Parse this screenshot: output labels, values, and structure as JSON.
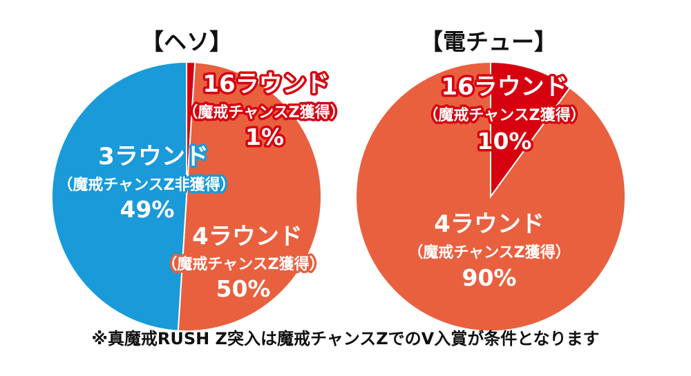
{
  "chart_data": [
    {
      "type": "pie",
      "title": "【ヘソ】",
      "slices": [
        {
          "label": "16ラウンド",
          "sublabel": "（魔戒チャンスZ獲得）",
          "value": 1,
          "pct_text": "1%",
          "color": "#d7000f"
        },
        {
          "label": "4ラウンド",
          "sublabel": "（魔戒チャンスZ獲得）",
          "value": 50,
          "pct_text": "50%",
          "color": "#e9603f"
        },
        {
          "label": "3ラウンド",
          "sublabel": "（魔戒チャンスZ非獲得）",
          "value": 49,
          "pct_text": "49%",
          "color": "#1a9ad8"
        }
      ]
    },
    {
      "type": "pie",
      "title": "【電チュー】",
      "slices": [
        {
          "label": "16ラウンド",
          "sublabel": "（魔戒チャンスZ獲得）",
          "value": 10,
          "pct_text": "10%",
          "color": "#d7000f"
        },
        {
          "label": "4ラウンド",
          "sublabel": "（魔戒チャンスZ獲得）",
          "value": 90,
          "pct_text": "90%",
          "color": "#e9603f"
        }
      ]
    }
  ],
  "footnote": "※真魔戒RUSH Z突入は魔戒チャンスZでのV入賞が条件となります"
}
